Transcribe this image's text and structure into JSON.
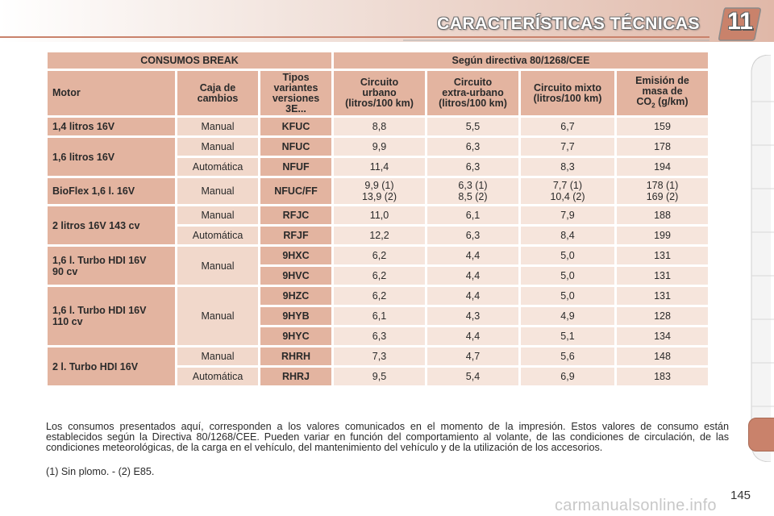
{
  "header": {
    "title": "CARACTERÍSTICAS TÉCNICAS",
    "chapter": "11"
  },
  "table": {
    "title_left": "CONSUMOS BREAK",
    "title_right": "Según directiva 80/1268/CEE",
    "headers": {
      "motor": "Motor",
      "gearbox": [
        "Caja de",
        "cambios"
      ],
      "types": [
        "Tipos",
        "variantes",
        "versiones",
        "3E..."
      ],
      "urban": [
        "Circuito",
        "urbano",
        "(litros/100 km)"
      ],
      "extra": [
        "Circuito",
        "extra-urbano",
        "(litros/100 km)"
      ],
      "mixed": [
        "Circuito mixto",
        "(litros/100 km)"
      ],
      "co2": [
        "Emisión de",
        "masa de",
        "CO",
        "2",
        " (g/km)"
      ]
    },
    "engines": [
      {
        "name": [
          "1,4 litros 16V"
        ],
        "gear": "Manual",
        "code": "KFUC",
        "urban": "8,8",
        "extra": "5,5",
        "mixed": "6,7",
        "co2": "159"
      },
      {
        "name": [
          "1,6 litros 16V"
        ],
        "gear": "Manual",
        "code": "NFUC",
        "urban": "9,9",
        "extra": "6,3",
        "mixed": "7,7",
        "co2": "178"
      },
      {
        "gear": "Automática",
        "code": "NFUF",
        "urban": "11,4",
        "extra": "6,3",
        "mixed": "8,3",
        "co2": "194"
      },
      {
        "name": [
          "BioFlex 1,6 l. 16V"
        ],
        "gear": "Manual",
        "code": "NFUC/FF",
        "urban": [
          "9,9 (1)",
          "13,9 (2)"
        ],
        "extra": [
          "6,3 (1)",
          "8,5 (2)"
        ],
        "mixed": [
          "7,7 (1)",
          "10,4 (2)"
        ],
        "co2": [
          "178 (1)",
          "169 (2)"
        ]
      },
      {
        "name": [
          "2 litros 16V 143 cv"
        ],
        "gear": "Manual",
        "code": "RFJC",
        "urban": "11,0",
        "extra": "6,1",
        "mixed": "7,9",
        "co2": "188"
      },
      {
        "gear": "Automática",
        "code": "RFJF",
        "urban": "12,2",
        "extra": "6,3",
        "mixed": "8,4",
        "co2": "199"
      },
      {
        "name": [
          "1,6 l. Turbo HDI 16V",
          "90 cv"
        ],
        "gear": "Manual",
        "code": "9HXC",
        "urban": "6,2",
        "extra": "4,4",
        "mixed": "5,0",
        "co2": "131"
      },
      {
        "code": "9HVC",
        "urban": "6,2",
        "extra": "4,4",
        "mixed": "5,0",
        "co2": "131"
      },
      {
        "name": [
          "1,6 l. Turbo HDI 16V",
          "110 cv"
        ],
        "gear": "Manual",
        "code": "9HZC",
        "urban": "6,2",
        "extra": "4,4",
        "mixed": "5,0",
        "co2": "131"
      },
      {
        "code": "9HYB",
        "urban": "6,1",
        "extra": "4,3",
        "mixed": "4,9",
        "co2": "128"
      },
      {
        "code": "9HYC",
        "urban": "6,3",
        "extra": "4,4",
        "mixed": "5,1",
        "co2": "134"
      },
      {
        "name": [
          "2 l. Turbo HDI 16V"
        ],
        "gear": "Manual",
        "code": "RHRH",
        "urban": "7,3",
        "extra": "4,7",
        "mixed": "5,6",
        "co2": "148"
      },
      {
        "gear": "Automática",
        "code": "RHRJ",
        "urban": "9,5",
        "extra": "5,4",
        "mixed": "6,9",
        "co2": "183"
      }
    ]
  },
  "notes": "Los consumos presentados aquí, corresponden a los valores comunicados en el momento de la impresión. Estos valores de consumo están establecidos según la Directiva 80/1268/CEE. Pueden variar en función del comportamiento al volante, de las condiciones de circulación, de las condiciones meteorológicas, de la carga en el vehículo, del mantenimiento del vehículo y de la utilización de los accesorios.",
  "footnote": "(1) Sin plomo. - (2) E85.",
  "page_number": "145",
  "watermark": "carmanualsonline.info",
  "colors": {
    "header_bg": "#c9826b",
    "table_header": "#e3b4a0",
    "gear_cell": "#f1d8cb",
    "value_cell": "#f6e5dc"
  }
}
